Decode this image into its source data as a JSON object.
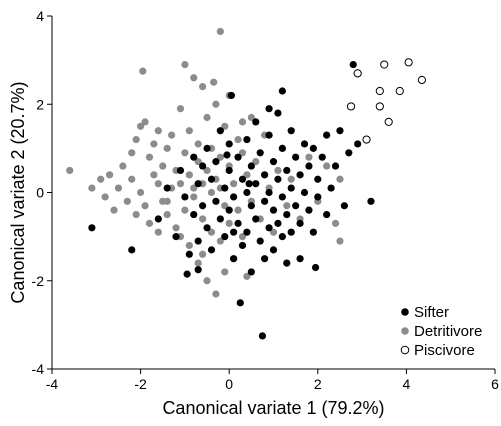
{
  "chart_data": {
    "type": "scatter",
    "title": "",
    "xlabel": "Canonical variate 1 (79.2%)",
    "ylabel": "Canonical variate 2 (20.7%)",
    "xlim": [
      -4,
      6
    ],
    "ylim": [
      -4,
      4
    ],
    "xticks": [
      -4,
      -2,
      0,
      2,
      4,
      6
    ],
    "yticks": [
      -4,
      -2,
      0,
      2,
      4
    ],
    "xtick_labels": [
      "-4",
      "-2",
      "0",
      "2",
      "4",
      "6"
    ],
    "ytick_labels": [
      "-4",
      "-2",
      "0",
      "2",
      "4"
    ],
    "grid": false,
    "legend_position": "bottom-right",
    "series": [
      {
        "name": "Detritivore",
        "marker": "filled-circle",
        "color": "#8c8c8c",
        "points": [
          [
            -3.6,
            0.5
          ],
          [
            -3.1,
            0.1
          ],
          [
            -2.9,
            0.3
          ],
          [
            -2.8,
            -0.1
          ],
          [
            -2.7,
            0.4
          ],
          [
            -2.6,
            -0.4
          ],
          [
            -2.5,
            0.1
          ],
          [
            -2.4,
            0.6
          ],
          [
            -2.3,
            -0.2
          ],
          [
            -2.2,
            0.3
          ],
          [
            -2.2,
            0.9
          ],
          [
            -2.1,
            -0.5
          ],
          [
            -2.1,
            1.2
          ],
          [
            -2.0,
            0.0
          ],
          [
            -2.0,
            1.5
          ],
          [
            -1.95,
            2.75
          ],
          [
            -1.9,
            -0.3
          ],
          [
            -1.9,
            1.6
          ],
          [
            -1.8,
            0.8
          ],
          [
            -1.8,
            -0.7
          ],
          [
            -1.7,
            0.4
          ],
          [
            -1.7,
            1.1
          ],
          [
            -1.6,
            -0.9
          ],
          [
            -1.6,
            0.2
          ],
          [
            -1.6,
            1.4
          ],
          [
            -1.5,
            0.6
          ],
          [
            -1.5,
            -0.2
          ],
          [
            -1.4,
            1.0
          ],
          [
            -1.4,
            -0.5
          ],
          [
            -1.3,
            0.1
          ],
          [
            -1.3,
            1.3
          ],
          [
            -1.2,
            -0.8
          ],
          [
            -1.2,
            0.5
          ],
          [
            -1.1,
            0.2
          ],
          [
            -1.1,
            1.9
          ],
          [
            -1.0,
            -0.4
          ],
          [
            -1.0,
            0.9
          ],
          [
            -1.0,
            2.9
          ],
          [
            -0.9,
            -1.2
          ],
          [
            -0.9,
            0.4
          ],
          [
            -0.9,
            1.4
          ],
          [
            -0.8,
            -0.1
          ],
          [
            -0.8,
            2.6
          ],
          [
            -0.7,
            -1.6
          ],
          [
            -0.7,
            0.7
          ],
          [
            -0.7,
            1.1
          ],
          [
            -0.6,
            -0.6
          ],
          [
            -0.6,
            0.2
          ],
          [
            -0.6,
            2.4
          ],
          [
            -0.5,
            -2.0
          ],
          [
            -0.5,
            0.5
          ],
          [
            -0.5,
            1.7
          ],
          [
            -0.4,
            -0.9
          ],
          [
            -0.4,
            0.0
          ],
          [
            -0.4,
            1.0
          ],
          [
            -0.3,
            -2.3
          ],
          [
            -0.3,
            0.3
          ],
          [
            -0.3,
            2.0
          ],
          [
            -0.2,
            -1.1
          ],
          [
            -0.2,
            0.8
          ],
          [
            -0.2,
            3.65
          ],
          [
            -0.1,
            -0.3
          ],
          [
            -0.1,
            1.5
          ],
          [
            -0.1,
            -1.8
          ],
          [
            0.0,
            0.6
          ],
          [
            0.0,
            -0.7
          ],
          [
            0.0,
            2.2
          ],
          [
            0.1,
            -1.5
          ],
          [
            0.1,
            0.2
          ],
          [
            0.2,
            1.2
          ],
          [
            0.2,
            -0.4
          ],
          [
            0.3,
            0.9
          ],
          [
            0.3,
            -1.0
          ],
          [
            0.4,
            0.4
          ],
          [
            0.4,
            -1.9
          ],
          [
            0.5,
            1.7
          ],
          [
            0.5,
            -0.2
          ],
          [
            0.6,
            0.7
          ],
          [
            0.7,
            -0.6
          ],
          [
            0.8,
            1.3
          ],
          [
            0.9,
            0.1
          ],
          [
            1.0,
            -0.9
          ],
          [
            1.1,
            0.5
          ],
          [
            1.2,
            1.0
          ],
          [
            1.3,
            -0.3
          ],
          [
            1.4,
            0.3
          ],
          [
            1.6,
            -0.6
          ],
          [
            1.8,
            0.8
          ],
          [
            2.0,
            -0.2
          ],
          [
            2.2,
            0.6
          ],
          [
            2.4,
            -0.7
          ],
          [
            2.5,
            0.3
          ],
          [
            2.5,
            -1.1
          ],
          [
            -0.6,
            -1.4
          ],
          [
            -1.4,
            -0.2
          ],
          [
            -0.8,
            0.1
          ],
          [
            -1.1,
            -1.0
          ],
          [
            -0.2,
            0.1
          ],
          [
            0.3,
            1.6
          ],
          [
            -0.35,
            2.5
          ]
        ]
      },
      {
        "name": "Sifter",
        "marker": "filled-circle",
        "color": "#000000",
        "points": [
          [
            -3.1,
            -0.8
          ],
          [
            -2.2,
            -1.3
          ],
          [
            -1.6,
            -0.6
          ],
          [
            -1.4,
            0.1
          ],
          [
            -1.2,
            -1.0
          ],
          [
            -1.1,
            0.5
          ],
          [
            -1.0,
            -0.1
          ],
          [
            -0.9,
            -1.4
          ],
          [
            -0.8,
            0.8
          ],
          [
            -0.8,
            -0.5
          ],
          [
            -0.7,
            0.2
          ],
          [
            -0.7,
            -1.1
          ],
          [
            -0.6,
            0.6
          ],
          [
            -0.6,
            -0.3
          ],
          [
            -0.5,
            1.0
          ],
          [
            -0.5,
            -0.8
          ],
          [
            -0.4,
            0.3
          ],
          [
            -0.4,
            -1.3
          ],
          [
            -0.3,
            0.7
          ],
          [
            -0.3,
            -0.2
          ],
          [
            -0.2,
            1.4
          ],
          [
            -0.2,
            -0.6
          ],
          [
            -0.1,
            0.1
          ],
          [
            -0.1,
            -1.0
          ],
          [
            0.0,
            0.5
          ],
          [
            0.0,
            -0.4
          ],
          [
            0.0,
            1.1
          ],
          [
            0.05,
            2.2
          ],
          [
            0.1,
            -0.1
          ],
          [
            0.1,
            -1.5
          ],
          [
            0.2,
            0.8
          ],
          [
            0.2,
            -0.7
          ],
          [
            0.3,
            0.3
          ],
          [
            0.3,
            -1.2
          ],
          [
            0.4,
            1.2
          ],
          [
            0.4,
            0.0
          ],
          [
            0.4,
            -0.9
          ],
          [
            0.5,
            0.6
          ],
          [
            0.5,
            -0.3
          ],
          [
            0.5,
            -1.8
          ],
          [
            0.6,
            1.6
          ],
          [
            0.6,
            0.2
          ],
          [
            0.6,
            -0.6
          ],
          [
            0.7,
            0.9
          ],
          [
            0.7,
            -1.1
          ],
          [
            0.8,
            0.4
          ],
          [
            0.8,
            -0.2
          ],
          [
            0.8,
            -1.5
          ],
          [
            0.9,
            1.3
          ],
          [
            0.9,
            0.0
          ],
          [
            0.9,
            -0.8
          ],
          [
            1.0,
            0.7
          ],
          [
            1.0,
            -0.4
          ],
          [
            1.0,
            -1.3
          ],
          [
            1.1,
            1.8
          ],
          [
            1.1,
            0.3
          ],
          [
            1.1,
            -0.7
          ],
          [
            1.2,
            1.0
          ],
          [
            1.2,
            -0.1
          ],
          [
            1.2,
            -1.0
          ],
          [
            1.3,
            0.5
          ],
          [
            1.3,
            -0.5
          ],
          [
            1.4,
            1.4
          ],
          [
            1.4,
            0.1
          ],
          [
            1.4,
            -0.9
          ],
          [
            1.5,
            0.8
          ],
          [
            1.5,
            -0.3
          ],
          [
            1.6,
            0.4
          ],
          [
            1.6,
            -0.7
          ],
          [
            1.7,
            1.1
          ],
          [
            1.7,
            0.0
          ],
          [
            1.8,
            -0.4
          ],
          [
            1.8,
            0.6
          ],
          [
            1.9,
            1.0
          ],
          [
            1.9,
            -0.9
          ],
          [
            2.0,
            0.3
          ],
          [
            2.0,
            -0.1
          ],
          [
            2.1,
            0.8
          ],
          [
            2.2,
            -0.5
          ],
          [
            2.2,
            1.3
          ],
          [
            2.3,
            0.1
          ],
          [
            2.4,
            0.6
          ],
          [
            2.5,
            1.4
          ],
          [
            2.6,
            -0.3
          ],
          [
            2.7,
            0.9
          ],
          [
            2.8,
            2.9
          ],
          [
            2.9,
            1.1
          ],
          [
            3.2,
            -0.2
          ],
          [
            1.2,
            2.3
          ],
          [
            0.9,
            1.9
          ],
          [
            0.45,
            0.2
          ],
          [
            0.25,
            -2.5
          ],
          [
            0.75,
            -3.25
          ],
          [
            1.6,
            -1.5
          ],
          [
            1.95,
            -1.7
          ],
          [
            -0.7,
            -1.75
          ],
          [
            -0.95,
            -1.85
          ],
          [
            0.1,
            -0.9
          ],
          [
            1.3,
            -1.6
          ],
          [
            -0.05,
            0.85
          ]
        ]
      },
      {
        "name": "Piscivore",
        "marker": "open-circle",
        "color": "#000000",
        "points": [
          [
            2.75,
            1.95
          ],
          [
            2.9,
            2.7
          ],
          [
            3.1,
            1.2
          ],
          [
            3.4,
            2.3
          ],
          [
            3.4,
            1.95
          ],
          [
            3.5,
            2.9
          ],
          [
            3.6,
            1.6
          ],
          [
            3.85,
            2.3
          ],
          [
            4.05,
            2.95
          ],
          [
            4.35,
            2.55
          ]
        ]
      }
    ],
    "legend": [
      {
        "name": "Sifter",
        "marker": "filled-circle",
        "color": "#000000"
      },
      {
        "name": "Detritivore",
        "marker": "filled-circle",
        "color": "#8c8c8c"
      },
      {
        "name": "Piscivore",
        "marker": "open-circle",
        "color": "#000000"
      }
    ]
  }
}
